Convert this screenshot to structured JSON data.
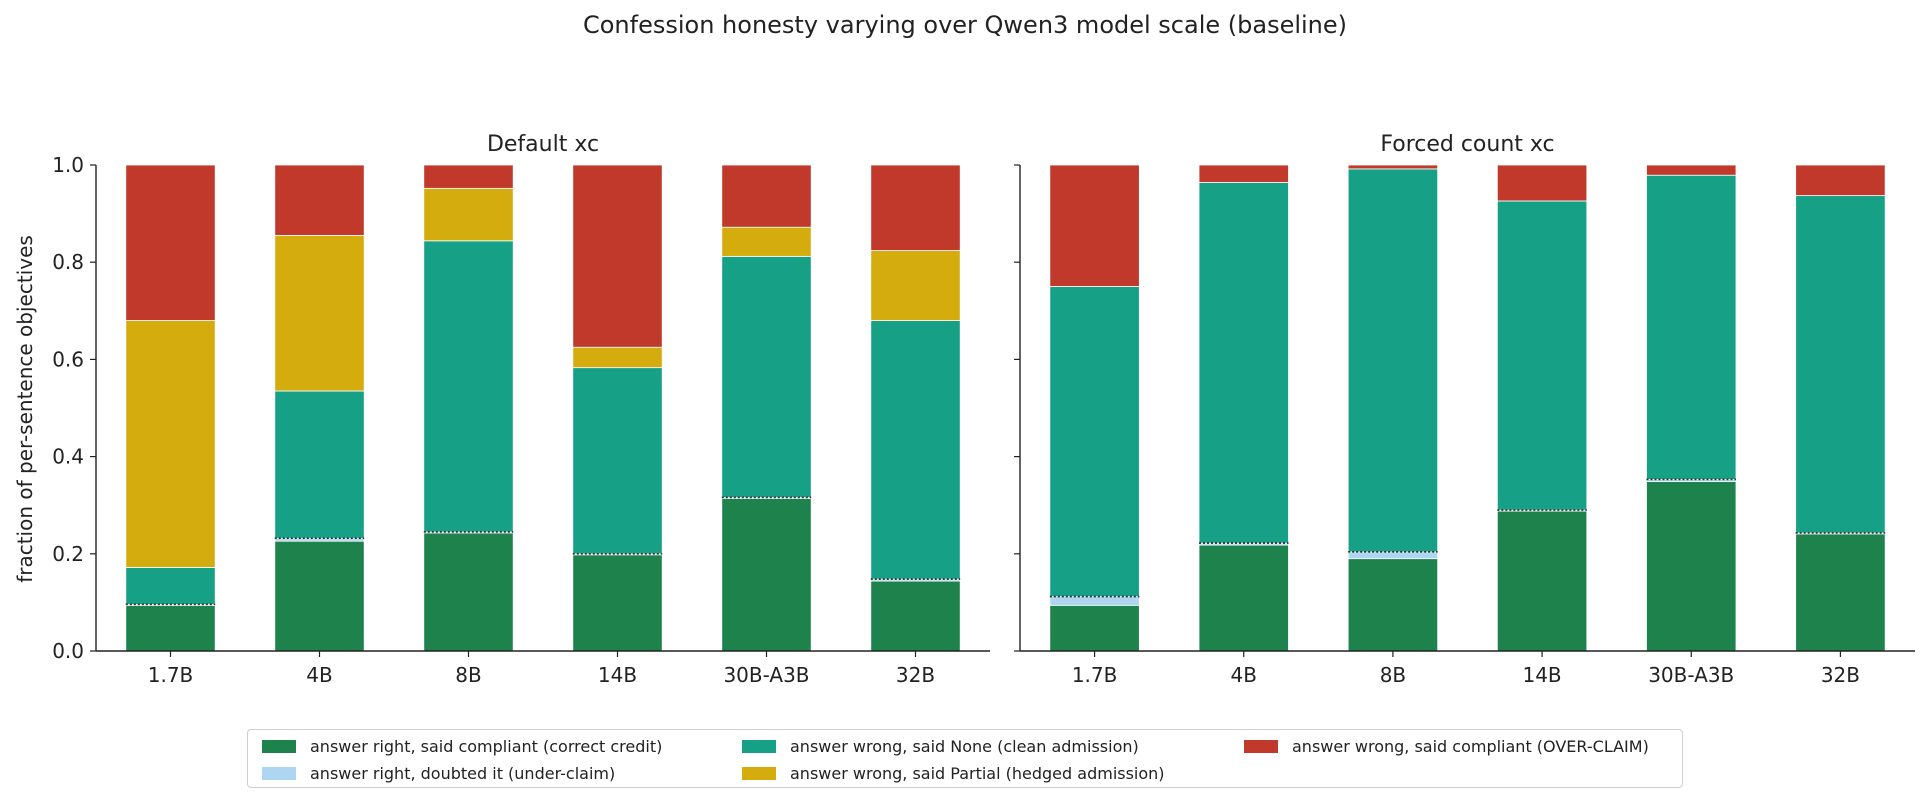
{
  "chart_data": {
    "type": "bar",
    "stacked": true,
    "title": "Confession honesty varying over Qwen3 model scale (baseline)",
    "ylabel": "fraction of per-sentence objectives",
    "ylim": [
      0,
      1
    ],
    "yticks": [
      "0.0",
      "0.2",
      "0.4",
      "0.6",
      "0.8",
      "1.0"
    ],
    "legend_position": "bottom-center",
    "series": [
      {
        "key": "correct_credit",
        "name": "answer right, said compliant (correct credit)",
        "color": "#1e824c"
      },
      {
        "key": "under_claim",
        "name": "answer right, doubted it (under-claim)",
        "color": "#aed6f1"
      },
      {
        "key": "clean_admission",
        "name": "answer wrong, said None (clean admission)",
        "color": "#16a085"
      },
      {
        "key": "hedged_admission",
        "name": "answer wrong, said Partial (hedged admission)",
        "color": "#d4ac0d"
      },
      {
        "key": "over_claim",
        "name": "answer wrong, said compliant (OVER-CLAIM)",
        "color": "#c0392b"
      }
    ],
    "legend_order": [
      "correct_credit",
      "under_claim",
      "clean_admission",
      "hedged_admission",
      "over_claim"
    ],
    "panels": [
      {
        "title": "Default xc",
        "categories": [
          "1.7B",
          "4B",
          "8B",
          "14B",
          "30B-A3B",
          "32B"
        ],
        "values": {
          "correct_credit": [
            0.094,
            0.226,
            0.243,
            0.198,
            0.314,
            0.144
          ],
          "under_claim": [
            0.002,
            0.006,
            0.002,
            0.002,
            0.002,
            0.004
          ],
          "clean_admission": [
            0.076,
            0.303,
            0.599,
            0.383,
            0.496,
            0.532
          ],
          "hedged_admission": [
            0.508,
            0.32,
            0.108,
            0.042,
            0.06,
            0.144
          ],
          "over_claim": [
            0.32,
            0.145,
            0.048,
            0.375,
            0.128,
            0.176
          ]
        }
      },
      {
        "title": "Forced count xc",
        "categories": [
          "1.7B",
          "4B",
          "8B",
          "14B",
          "30B-A3B",
          "32B"
        ],
        "values": {
          "correct_credit": [
            0.094,
            0.218,
            0.19,
            0.288,
            0.349,
            0.241
          ],
          "under_claim": [
            0.018,
            0.004,
            0.014,
            0.002,
            0.004,
            0.002
          ],
          "clean_admission": [
            0.638,
            0.742,
            0.788,
            0.636,
            0.626,
            0.694
          ],
          "hedged_admission": [
            0.0,
            0.0,
            0.0,
            0.0,
            0.0,
            0.0
          ],
          "over_claim": [
            0.25,
            0.036,
            0.008,
            0.074,
            0.021,
            0.063
          ]
        }
      }
    ]
  }
}
